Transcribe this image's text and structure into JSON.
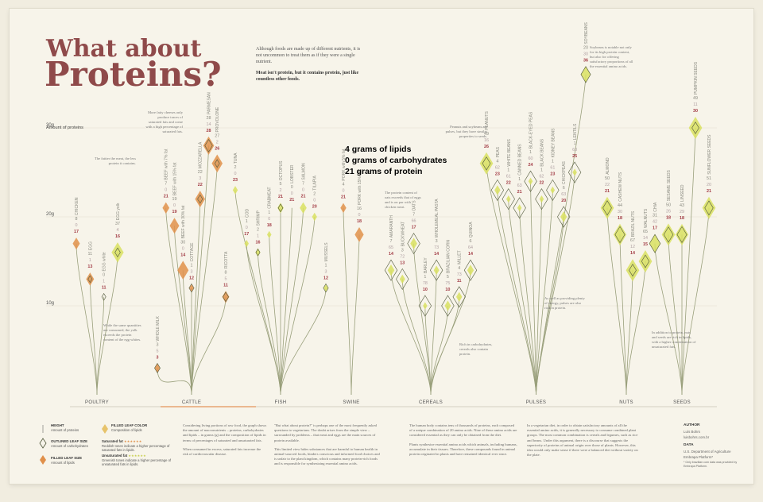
{
  "header": {
    "title_line1": "What about",
    "title_line2": "Proteins?",
    "intro_p1": "Although foods are made up of different nutrients, it is not uncommon to treat them as if they were a single nutrient.",
    "intro_p2": "Meat isn't protein, but it contains protein, just like countless other foods."
  },
  "legend_numbers": {
    "lipids": "4 grams of lipids",
    "carbs": "0 grams of carbohydrates",
    "protein": "21 grams of protein"
  },
  "colors": {
    "title": "#8f4a4a",
    "lipid_num": "#8a8a80",
    "carb_num": "#b0a0a2",
    "protein_num": "#a23b45",
    "stem": "#9aa07c",
    "leaf_outline": "#51583b",
    "saturated": "#e0904a",
    "unsaturated": "#d9e062"
  },
  "chart_data": {
    "type": "other",
    "ylabel": "Amount of proteins",
    "y_ticks": [
      "10g",
      "20g",
      "30g"
    ],
    "ylim": [
      0,
      37
    ],
    "groups": [
      "POULTRY",
      "CATTLE",
      "FISH",
      "SWINE",
      "CEREALS",
      "PULSES",
      "NUTS",
      "SEEDS"
    ],
    "items": [
      {
        "name": "CHICKEN",
        "group": "POULTRY",
        "lipids": 8,
        "carbs": 0,
        "protein": 17,
        "fat": "sat"
      },
      {
        "name": "EGG",
        "group": "POULTRY",
        "lipids": 11,
        "carbs": 1,
        "protein": 13,
        "fat": "sat"
      },
      {
        "name": "EGG white",
        "group": "POULTRY",
        "lipids": 0,
        "carbs": 1,
        "protein": 11,
        "fat": "unsat"
      },
      {
        "name": "EGG yolk",
        "group": "POULTRY",
        "lipids": 37,
        "carbs": 4,
        "protein": 16,
        "fat": "unsat"
      },
      {
        "name": "WHOLE MILK",
        "group": "CATTLE",
        "lipids": 3,
        "carbs": 5,
        "protein": 3,
        "fat": "sat"
      },
      {
        "name": "BEEF with 7% fat",
        "group": "CATTLE",
        "lipids": 7,
        "carbs": 0,
        "protein": 21,
        "fat": "sat"
      },
      {
        "name": "BEEF with 15% fat",
        "group": "CATTLE",
        "lipids": 19,
        "carbs": 0,
        "protein": 19,
        "fat": "sat"
      },
      {
        "name": "BEEF with 30% fat",
        "group": "CATTLE",
        "lipids": 30,
        "carbs": 0,
        "protein": 14,
        "fat": "sat"
      },
      {
        "name": "COTTAGE",
        "group": "CATTLE",
        "lipids": 1,
        "carbs": 3,
        "protein": 12,
        "fat": "sat"
      },
      {
        "name": "MOZZARELLA",
        "group": "CATTLE",
        "lipids": 22,
        "carbs": 3,
        "protein": 22,
        "fat": "sat"
      },
      {
        "name": "PARMESAN",
        "group": "CATTLE",
        "lipids": 28,
        "carbs": 14,
        "protein": 28,
        "fat": "sat"
      },
      {
        "name": "PROVOLONE",
        "group": "CATTLE",
        "lipids": 27,
        "carbs": 2,
        "protein": 26,
        "fat": "sat"
      },
      {
        "name": "RICOTTA",
        "group": "CATTLE",
        "lipids": 8,
        "carbs": 5,
        "protein": 11,
        "fat": "sat"
      },
      {
        "name": "TUNA",
        "group": "FISH",
        "lipids": 2,
        "carbs": 0,
        "protein": 23,
        "fat": "unsat"
      },
      {
        "name": "COD",
        "group": "FISH",
        "lipids": 1,
        "carbs": 0,
        "protein": 17,
        "fat": "unsat"
      },
      {
        "name": "SHRIMP",
        "group": "FISH",
        "lipids": 2,
        "carbs": 1,
        "protein": 16,
        "fat": "unsat"
      },
      {
        "name": "CRABMEAT",
        "group": "FISH",
        "lipids": 1,
        "carbs": 0,
        "protein": 18,
        "fat": "unsat"
      },
      {
        "name": "OCTOPUS",
        "group": "FISH",
        "lipids": 5,
        "carbs": 2,
        "protein": 21,
        "fat": "unsat"
      },
      {
        "name": "LOBSTER",
        "group": "FISH",
        "lipids": 0,
        "carbs": 0,
        "protein": 21,
        "fat": "unsat"
      },
      {
        "name": "SALMON",
        "group": "FISH",
        "lipids": 7,
        "carbs": 0,
        "protein": 21,
        "fat": "unsat"
      },
      {
        "name": "TILAPIA",
        "group": "FISH",
        "lipids": 2,
        "carbs": 0,
        "protein": 20,
        "fat": "unsat"
      },
      {
        "name": "MUSSELS",
        "group": "FISH",
        "lipids": 1,
        "carbs": 3,
        "protein": 12,
        "fat": "unsat"
      },
      {
        "name": "PORK with 5% fat",
        "group": "SWINE",
        "lipids": 4,
        "carbs": 0,
        "protein": 21,
        "fat": "sat"
      },
      {
        "name": "PORK with 15% fat",
        "group": "SWINE",
        "lipids": 16,
        "carbs": 0,
        "protein": 18,
        "fat": "sat"
      },
      {
        "name": "AMARANTH",
        "group": "CEREALS",
        "lipids": 7,
        "carbs": 65,
        "protein": 14,
        "fat": "unsat"
      },
      {
        "name": "BUCKWHEAT",
        "group": "CEREALS",
        "lipids": 3,
        "carbs": 72,
        "protein": 13,
        "fat": "unsat"
      },
      {
        "name": "OATS",
        "group": "CEREALS",
        "lipids": 7,
        "carbs": 66,
        "protein": 17,
        "fat": "unsat"
      },
      {
        "name": "BARLEY",
        "group": "CEREALS",
        "lipids": 1,
        "carbs": 78,
        "protein": 10,
        "fat": "unsat"
      },
      {
        "name": "WHOLEMEAL PASTA",
        "group": "CEREALS",
        "lipids": 3,
        "carbs": 73,
        "protein": 14,
        "fat": "unsat"
      },
      {
        "name": "BRAZILIAN CORN",
        "group": "CEREALS",
        "lipids": 5,
        "carbs": 75,
        "protein": 10,
        "fat": "unsat"
      },
      {
        "name": "MILLET",
        "group": "CEREALS",
        "lipids": 4,
        "carbs": 73,
        "protein": 11,
        "fat": "unsat"
      },
      {
        "name": "QUINOA",
        "group": "CEREALS",
        "lipids": 6,
        "carbs": 64,
        "protein": 14,
        "fat": "unsat"
      },
      {
        "name": "PEANUTS",
        "group": "PULSES",
        "lipids": 49,
        "carbs": 16,
        "protein": 26,
        "fat": "unsat"
      },
      {
        "name": "PEAS",
        "group": "PULSES",
        "lipids": 4,
        "carbs": 62,
        "protein": 23,
        "fat": "unsat"
      },
      {
        "name": "WHITE BEANS",
        "group": "PULSES",
        "lipids": 1,
        "carbs": 61,
        "protein": 22,
        "fat": "unsat"
      },
      {
        "name": "CANNED BEANS",
        "group": "PULSES",
        "lipids": 1,
        "carbs": 63,
        "protein": 21,
        "fat": "unsat"
      },
      {
        "name": "BLACK-EYED PEAS",
        "group": "PULSES",
        "lipids": 1,
        "carbs": 60,
        "protein": 24,
        "fat": "unsat"
      },
      {
        "name": "BLACK BEANS",
        "group": "PULSES",
        "lipids": 1,
        "carbs": 62,
        "protein": 22,
        "fat": "unsat"
      },
      {
        "name": "KIDNEY BEANS",
        "group": "PULSES",
        "lipids": 1,
        "carbs": 61,
        "protein": 23,
        "fat": "unsat"
      },
      {
        "name": "CHICKPEAS",
        "group": "PULSES",
        "lipids": 6,
        "carbs": 63,
        "protein": 20,
        "fat": "unsat"
      },
      {
        "name": "LENTILS",
        "group": "PULSES",
        "lipids": 1,
        "carbs": 63,
        "protein": 25,
        "fat": "unsat"
      },
      {
        "name": "SOYBEANS",
        "group": "PULSES",
        "lipids": 20,
        "carbs": 30,
        "protein": 36,
        "fat": "unsat"
      },
      {
        "name": "ALMOND",
        "group": "NUTS",
        "lipids": 50,
        "carbs": 22,
        "protein": 21,
        "fat": "unsat"
      },
      {
        "name": "CASHEW NUTS",
        "group": "NUTS",
        "lipids": 44,
        "carbs": 30,
        "protein": 18,
        "fat": "unsat"
      },
      {
        "name": "BRAZIL NUTS",
        "group": "NUTS",
        "lipids": 67,
        "carbs": 12,
        "protein": 14,
        "fat": "unsat"
      },
      {
        "name": "WALNUTS",
        "group": "NUTS",
        "lipids": 65,
        "carbs": 14,
        "protein": 15,
        "fat": "unsat"
      },
      {
        "name": "CHIA",
        "group": "SEEDS",
        "lipids": 31,
        "carbs": 42,
        "protein": 17,
        "fat": "unsat"
      },
      {
        "name": "SESAME SEEDS",
        "group": "SEEDS",
        "lipids": 50,
        "carbs": 26,
        "protein": 18,
        "fat": "unsat"
      },
      {
        "name": "LINSEED",
        "group": "SEEDS",
        "lipids": 43,
        "carbs": 29,
        "protein": 18,
        "fat": "unsat"
      },
      {
        "name": "PUMPKIN SEEDS",
        "group": "SEEDS",
        "lipids": 49,
        "carbs": 11,
        "protein": 30,
        "fat": "unsat"
      },
      {
        "name": "SUNFLOWER SEEDS",
        "group": "SEEDS",
        "lipids": 51,
        "carbs": 20,
        "protein": 21,
        "fat": "unsat"
      }
    ]
  },
  "annotations": {
    "beef": "The fattier the meat, the less protein it contains.",
    "cheese": "More fatty cheeses only produce traces of saturated fats and come with a high percentage of saturated fats.",
    "egg": "While the same quantities are consumed, the yolk exceeds the protein content of the egg whites.",
    "pulses": "Peanuts and soybeans are pulses, but they have similar properties to seeds.",
    "soy": "Soybeans is notable not only for its high protein content, but also for offering satisfactory proportions of all the essential amino acids.",
    "protein_oats": "The protein content of oats exceeds that of eggs and is on par with chicken meat.",
    "cereal_carbs": "Rich in carbohydrates, cereals also contain protein.",
    "pulses_energy": "As well as providing plenty of energy, pulses are also rich in protein.",
    "nuts": "In addition to protein, nuts and seeds are rich in lipids, with a higher concentration of unsaturated fats."
  },
  "key": {
    "height_title": "HEIGHT",
    "height_desc": "Amount of proteins",
    "outline_title": "OUTLINED LEAF SIZE",
    "outline_desc": "Amount of carbohydrates",
    "filled_title": "FILLED LEAF SIZE",
    "filled_desc": "Amount of lipids",
    "color_title": "FILLED LEAF COLOR",
    "color_desc": "Composition of lipids",
    "sat_title": "Saturated fat",
    "sat_desc": "Reddish tones indicate a higher percentage of saturated fats in lipids.",
    "unsat_title": "Unsaturated fat",
    "unsat_desc": "Greenish tones indicate a higher percentage of unsaturated fats in lipids.",
    "sat_stars": "★★★★★★",
    "unsat_stars": "★★★★★★"
  },
  "footer": {
    "col1": "Considering living portions of raw food, the graph shows the amount of macronutrients – proteins, carbohydrates and lipids – in grams (g) and the composition of lipids in terms of percentages of saturated and unsaturated fats.",
    "col1b": "When consumed in excess, saturated fats increase the risk of cardiovascular disease.",
    "col2": "\"But what about protein?\" is perhaps one of the most frequently asked questions to vegetarians. The doubt arises from the simple view – surrounded by problems – that meat and eggs are the main sources of protein available.",
    "col2b": "This limited view hides substances that are harmful to human health in animal-sourced foods, hinders conscious and informed food choices and is unfair to the plant kingdom, which contains many protein-rich foods and is responsible for synthesizing essential amino acids.",
    "col3": "The human body contains tens of thousands of proteins, each composed of a unique combination of 20 amino acids. Nine of these amino acids are considered essential as they can only be obtained from the diet.",
    "col3b": "Plants synthesize essential amino acids which animals, including humans, accumulate in their tissues. Therefore, these compounds found in animal protein originated in plants and have remained identical ever since.",
    "col4": "In a vegetarian diet, in order to obtain satisfactory amounts of all the essential amino acids, it is generally necessary to consume combined plant groups. The most common combination is cereals and legumes, such as rice and beans. Under this argument, there is a discourse that suggests the superiority of proteins of animal origin over those of plants. However, this idea would only make sense if there were a balanced diet without variety on the plate.",
    "author_h": "AUTHOR",
    "author": "Luís Bohrs",
    "author_handle": "luisbohrs.com.br",
    "data_h": "DATA",
    "data": "U.S. Department of Agriculture",
    "data2": "Embrapa Platform*",
    "data_note": "* Only brazilian corn data was provided by Embrapa Platform."
  }
}
